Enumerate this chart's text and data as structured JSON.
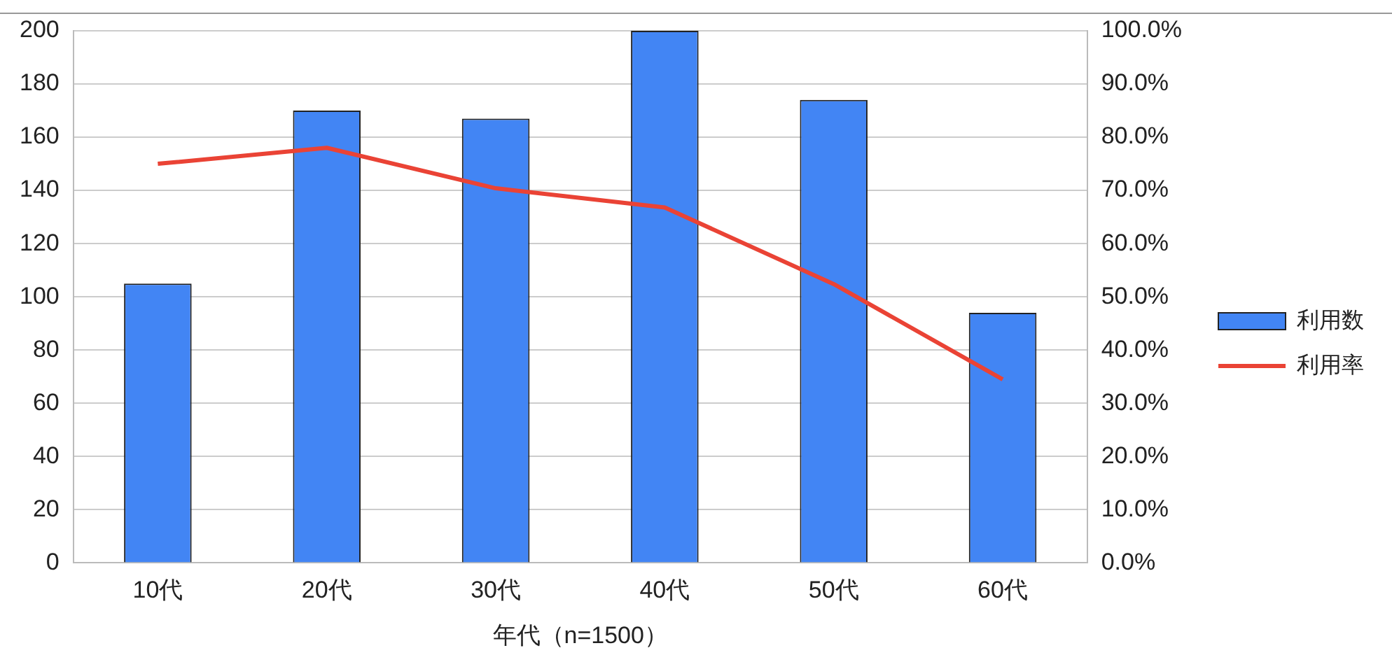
{
  "chart_data": {
    "type": "bar",
    "xlabel": "年代（n=1500）",
    "categories": [
      "10代",
      "20代",
      "30代",
      "40代",
      "50代",
      "60代"
    ],
    "series": [
      {
        "name": "利用数",
        "color": "#4285f4",
        "values": [
          105,
          170,
          167,
          200,
          174,
          94
        ]
      },
      {
        "name": "利用率",
        "type": "line",
        "axis": "y2",
        "color": "#ea4335",
        "values": [
          75,
          78,
          70.4,
          66.8,
          52.4,
          34.5
        ]
      }
    ],
    "ylim": [
      0,
      200
    ],
    "yticks": [
      0,
      20,
      40,
      60,
      80,
      100,
      120,
      140,
      160,
      180,
      200
    ],
    "y2lim": [
      0,
      100
    ],
    "y2ticks": [
      {
        "value": 0,
        "label": "0.0%"
      },
      {
        "value": 10,
        "label": "10.0%"
      },
      {
        "value": 20,
        "label": "20.0%"
      },
      {
        "value": 30,
        "label": "30.0%"
      },
      {
        "value": 40,
        "label": "40.0%"
      },
      {
        "value": 50,
        "label": "50.0%"
      },
      {
        "value": 60,
        "label": "60.0%"
      },
      {
        "value": 70,
        "label": "70.0%"
      },
      {
        "value": 80,
        "label": "80.0%"
      },
      {
        "value": 90,
        "label": "90.0%"
      },
      {
        "value": 100,
        "label": "100.0%"
      }
    ],
    "grid": "y",
    "legend": "right",
    "marker": "none",
    "line_style": "solid"
  }
}
